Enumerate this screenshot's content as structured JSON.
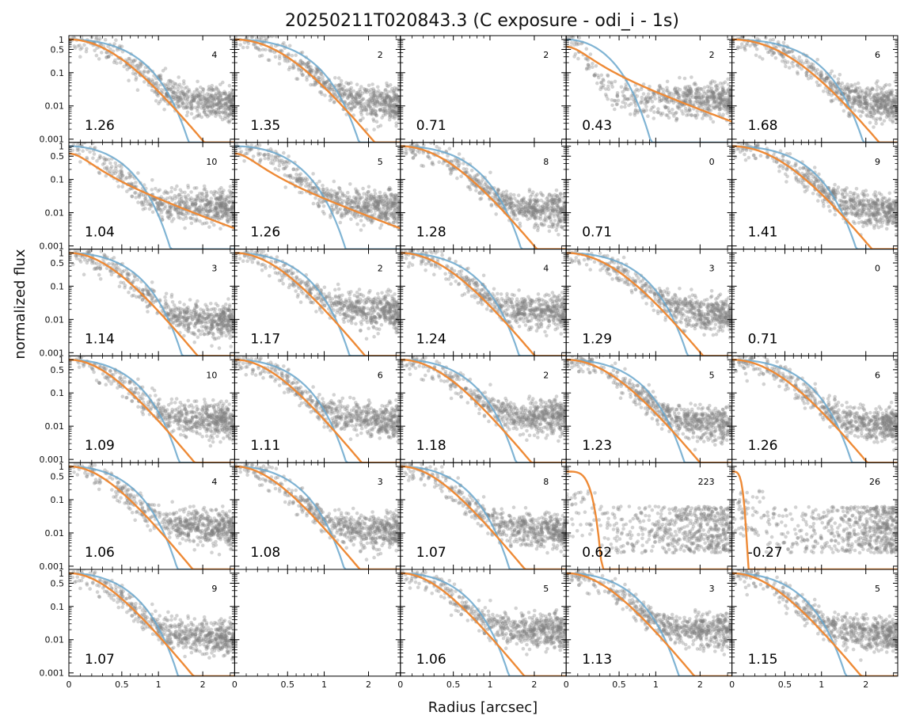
{
  "figure": {
    "title": "20250211T020843.3 (C exposure - odi_i - 1s)",
    "xlabel": "Radius [arcsec]",
    "ylabel": "normalized flux"
  },
  "colors": {
    "points": "#7f7f7f",
    "blue_curve": "#6aa7cd",
    "orange_curve": "#ee8a36"
  },
  "chart_data": {
    "type": "scatter",
    "layout": "grid 6 rows x 5 columns",
    "x_scale": "asinh",
    "y_scale": "log",
    "xlim": [
      0,
      3.2
    ],
    "ylim": [
      0.0008,
      1.3
    ],
    "x_ticks": [
      0,
      0.5,
      1,
      2
    ],
    "x_tick_labels": [
      "0",
      "0.5",
      "1",
      "2"
    ],
    "y_ticks": [
      1,
      0.5,
      0.1,
      0.01,
      0.001
    ],
    "y_tick_labels": [
      "1",
      "0.5",
      "0.1",
      "0.01",
      "0.001"
    ],
    "panels": [
      {
        "row": 0,
        "col": 0,
        "fwhm": "1.26",
        "count": "4",
        "has_data": true,
        "k": 1.26,
        "pt": 0.016
      },
      {
        "row": 0,
        "col": 1,
        "fwhm": "1.35",
        "count": "2",
        "has_data": true,
        "k": 1.35,
        "pt": 0.015
      },
      {
        "row": 0,
        "col": 2,
        "fwhm": "0.71",
        "count": "2",
        "has_data": false
      },
      {
        "row": 0,
        "col": 3,
        "fwhm": "0.43",
        "count": "2",
        "has_data": true,
        "k": 0.43,
        "pt": 0.02,
        "orange": "wide",
        "blue": 0.72
      },
      {
        "row": 0,
        "col": 4,
        "fwhm": "1.68",
        "count": "6",
        "has_data": true,
        "k": 1.5,
        "pt": 0.015
      },
      {
        "row": 1,
        "col": 0,
        "fwhm": "1.04",
        "count": "10",
        "has_data": true,
        "k": 0.9,
        "pt": 0.02,
        "orange": "wide",
        "blue": 0.95
      },
      {
        "row": 1,
        "col": 1,
        "fwhm": "1.26",
        "count": "5",
        "has_data": true,
        "k": 1.1,
        "pt": 0.02,
        "orange": "wide",
        "blue": 1.1
      },
      {
        "row": 1,
        "col": 2,
        "fwhm": "1.28",
        "count": "8",
        "has_data": true,
        "k": 1.28,
        "pt": 0.015
      },
      {
        "row": 1,
        "col": 3,
        "fwhm": "0.71",
        "count": "0",
        "has_data": false
      },
      {
        "row": 1,
        "col": 4,
        "fwhm": "1.41",
        "count": "9",
        "has_data": true,
        "k": 1.35,
        "pt": 0.015
      },
      {
        "row": 2,
        "col": 0,
        "fwhm": "1.14",
        "count": "3",
        "has_data": true,
        "k": 1.14,
        "pt": 0.012
      },
      {
        "row": 2,
        "col": 1,
        "fwhm": "1.17",
        "count": "2",
        "has_data": true,
        "k": 1.17,
        "pt": 0.025
      },
      {
        "row": 2,
        "col": 2,
        "fwhm": "1.24",
        "count": "4",
        "has_data": true,
        "k": 1.24,
        "pt": 0.02
      },
      {
        "row": 2,
        "col": 3,
        "fwhm": "1.29",
        "count": "3",
        "has_data": true,
        "k": 1.29,
        "pt": 0.02
      },
      {
        "row": 2,
        "col": 4,
        "fwhm": "0.71",
        "count": "0",
        "has_data": false
      },
      {
        "row": 3,
        "col": 0,
        "fwhm": "1.09",
        "count": "10",
        "has_data": true,
        "k": 1.09,
        "pt": 0.02
      },
      {
        "row": 3,
        "col": 1,
        "fwhm": "1.11",
        "count": "6",
        "has_data": true,
        "k": 1.11,
        "pt": 0.02
      },
      {
        "row": 3,
        "col": 2,
        "fwhm": "1.18",
        "count": "2",
        "has_data": true,
        "k": 1.18,
        "pt": 0.025
      },
      {
        "row": 3,
        "col": 3,
        "fwhm": "1.23",
        "count": "5",
        "has_data": true,
        "k": 1.23,
        "pt": 0.015
      },
      {
        "row": 3,
        "col": 4,
        "fwhm": "1.26",
        "count": "6",
        "has_data": true,
        "k": 1.26,
        "pt": 0.015
      },
      {
        "row": 4,
        "col": 0,
        "fwhm": "1.06",
        "count": "4",
        "has_data": true,
        "k": 1.06,
        "pt": 0.02
      },
      {
        "row": 4,
        "col": 1,
        "fwhm": "1.08",
        "count": "3",
        "has_data": true,
        "k": 1.08,
        "pt": 0.015
      },
      {
        "row": 4,
        "col": 2,
        "fwhm": "1.07",
        "count": "8",
        "has_data": true,
        "k": 1.07,
        "pt": 0.015
      },
      {
        "row": 4,
        "col": 3,
        "fwhm": "0.62",
        "count": "223",
        "has_data": true,
        "k": 0.62,
        "pt": 0.03,
        "orange": "steep",
        "scatter": "flat"
      },
      {
        "row": 4,
        "col": 4,
        "fwhm": "-0.27",
        "count": "26",
        "has_data": true,
        "k": 0.27,
        "pt": 0.01,
        "orange": "steep",
        "scatter": "flat"
      },
      {
        "row": 5,
        "col": 0,
        "fwhm": "1.07",
        "count": "9",
        "has_data": true,
        "k": 1.07,
        "pt": 0.015
      },
      {
        "row": 5,
        "col": 1,
        "fwhm": "",
        "count": "",
        "has_data": false
      },
      {
        "row": 5,
        "col": 2,
        "fwhm": "1.06",
        "count": "5",
        "has_data": true,
        "k": 1.06,
        "pt": 0.025
      },
      {
        "row": 5,
        "col": 3,
        "fwhm": "1.13",
        "count": "3",
        "has_data": true,
        "k": 1.13,
        "pt": 0.025
      },
      {
        "row": 5,
        "col": 4,
        "fwhm": "1.15",
        "count": "5",
        "has_data": true,
        "k": 1.15,
        "pt": 0.02
      }
    ]
  }
}
